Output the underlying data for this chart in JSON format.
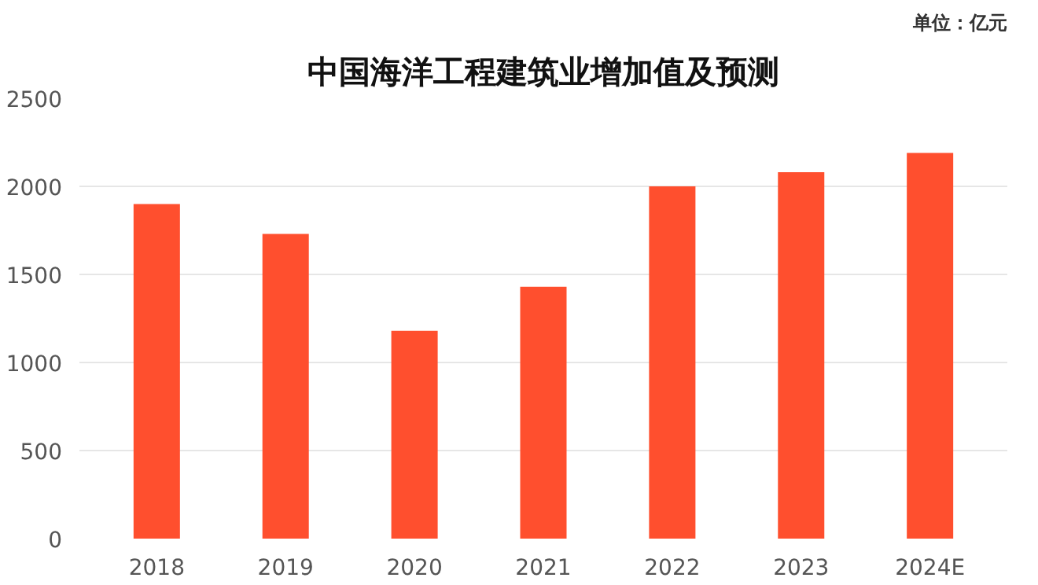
{
  "chart_data": {
    "type": "bar",
    "title": "中国海洋工程建筑业增加值及预测",
    "annotations": [
      "单位：亿元"
    ],
    "categories": [
      "2018",
      "2019",
      "2020",
      "2021",
      "2022",
      "2023",
      "2024E"
    ],
    "values": [
      1900,
      1730,
      1180,
      1430,
      2000,
      2080,
      2190
    ],
    "color": "#ff4f2e",
    "ylim": [
      0,
      2500
    ],
    "yticks": [
      0,
      500,
      1000,
      1500,
      2000,
      2500
    ],
    "grid": "y"
  }
}
